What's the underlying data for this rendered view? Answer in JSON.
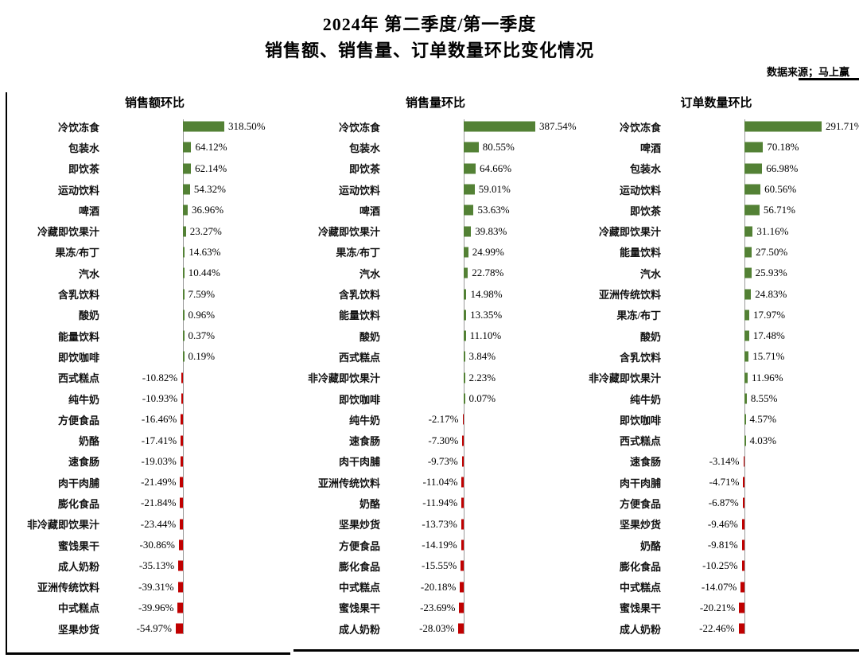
{
  "header": {
    "title_line1": "2024年 第二季度/第一季度",
    "title_line2": "销售额、销售量、订单数量环比变化情况",
    "source": "数据来源；马上赢"
  },
  "colors": {
    "positive_bar": "#538135",
    "negative_bar": "#c00000"
  },
  "chart_data": [
    {
      "type": "bar",
      "orientation": "horizontal",
      "title": "销售额环比",
      "value_unit": "%",
      "legend": "none",
      "grid": "off",
      "categories": [
        "冷饮冻食",
        "包装水",
        "即饮茶",
        "运动饮料",
        "啤酒",
        "冷藏即饮果汁",
        "果冻/布丁",
        "汽水",
        "含乳饮料",
        "酸奶",
        "能量饮料",
        "即饮咖啡",
        "西式糕点",
        "纯牛奶",
        "方便食品",
        "奶酪",
        "速食肠",
        "肉干肉脯",
        "膨化食品",
        "非冷藏即饮果汁",
        "蜜饯果干",
        "成人奶粉",
        "亚洲传统饮料",
        "中式糕点",
        "坚果炒货"
      ],
      "values": [
        318.5,
        64.12,
        62.14,
        54.32,
        36.96,
        23.27,
        14.63,
        10.44,
        7.59,
        0.96,
        0.37,
        0.19,
        -10.82,
        -10.93,
        -16.46,
        -17.41,
        -19.03,
        -21.49,
        -21.84,
        -23.44,
        -30.86,
        -35.13,
        -39.31,
        -39.96,
        -54.97
      ]
    },
    {
      "type": "bar",
      "orientation": "horizontal",
      "title": "销售量环比",
      "value_unit": "%",
      "legend": "none",
      "grid": "off",
      "categories": [
        "冷饮冻食",
        "包装水",
        "即饮茶",
        "运动饮料",
        "啤酒",
        "冷藏即饮果汁",
        "果冻/布丁",
        "汽水",
        "含乳饮料",
        "能量饮料",
        "酸奶",
        "西式糕点",
        "非冷藏即饮果汁",
        "即饮咖啡",
        "纯牛奶",
        "速食肠",
        "肉干肉脯",
        "亚洲传统饮料",
        "奶酪",
        "坚果炒货",
        "方便食品",
        "膨化食品",
        "中式糕点",
        "蜜饯果干",
        "成人奶粉"
      ],
      "values": [
        387.54,
        80.55,
        64.66,
        59.01,
        53.63,
        39.83,
        24.99,
        22.78,
        14.98,
        13.35,
        11.1,
        3.84,
        2.23,
        0.07,
        -2.17,
        -7.3,
        -9.73,
        -11.04,
        -11.94,
        -13.73,
        -14.19,
        -15.55,
        -20.18,
        -23.69,
        -28.03
      ]
    },
    {
      "type": "bar",
      "orientation": "horizontal",
      "title": "订单数量环比",
      "value_unit": "%",
      "legend": "none",
      "grid": "off",
      "categories": [
        "冷饮冻食",
        "啤酒",
        "包装水",
        "运动饮料",
        "即饮茶",
        "冷藏即饮果汁",
        "能量饮料",
        "汽水",
        "亚洲传统饮料",
        "果冻/布丁",
        "酸奶",
        "含乳饮料",
        "非冷藏即饮果汁",
        "纯牛奶",
        "即饮咖啡",
        "西式糕点",
        "速食肠",
        "肉干肉脯",
        "方便食品",
        "坚果炒货",
        "奶酪",
        "膨化食品",
        "中式糕点",
        "蜜饯果干",
        "成人奶粉"
      ],
      "values": [
        291.71,
        70.18,
        66.98,
        60.56,
        56.71,
        31.16,
        27.5,
        25.93,
        24.83,
        17.97,
        17.48,
        15.71,
        11.96,
        8.55,
        4.57,
        4.03,
        -3.14,
        -4.71,
        -6.87,
        -9.46,
        -9.81,
        -10.25,
        -14.07,
        -20.21,
        -22.46
      ]
    }
  ]
}
